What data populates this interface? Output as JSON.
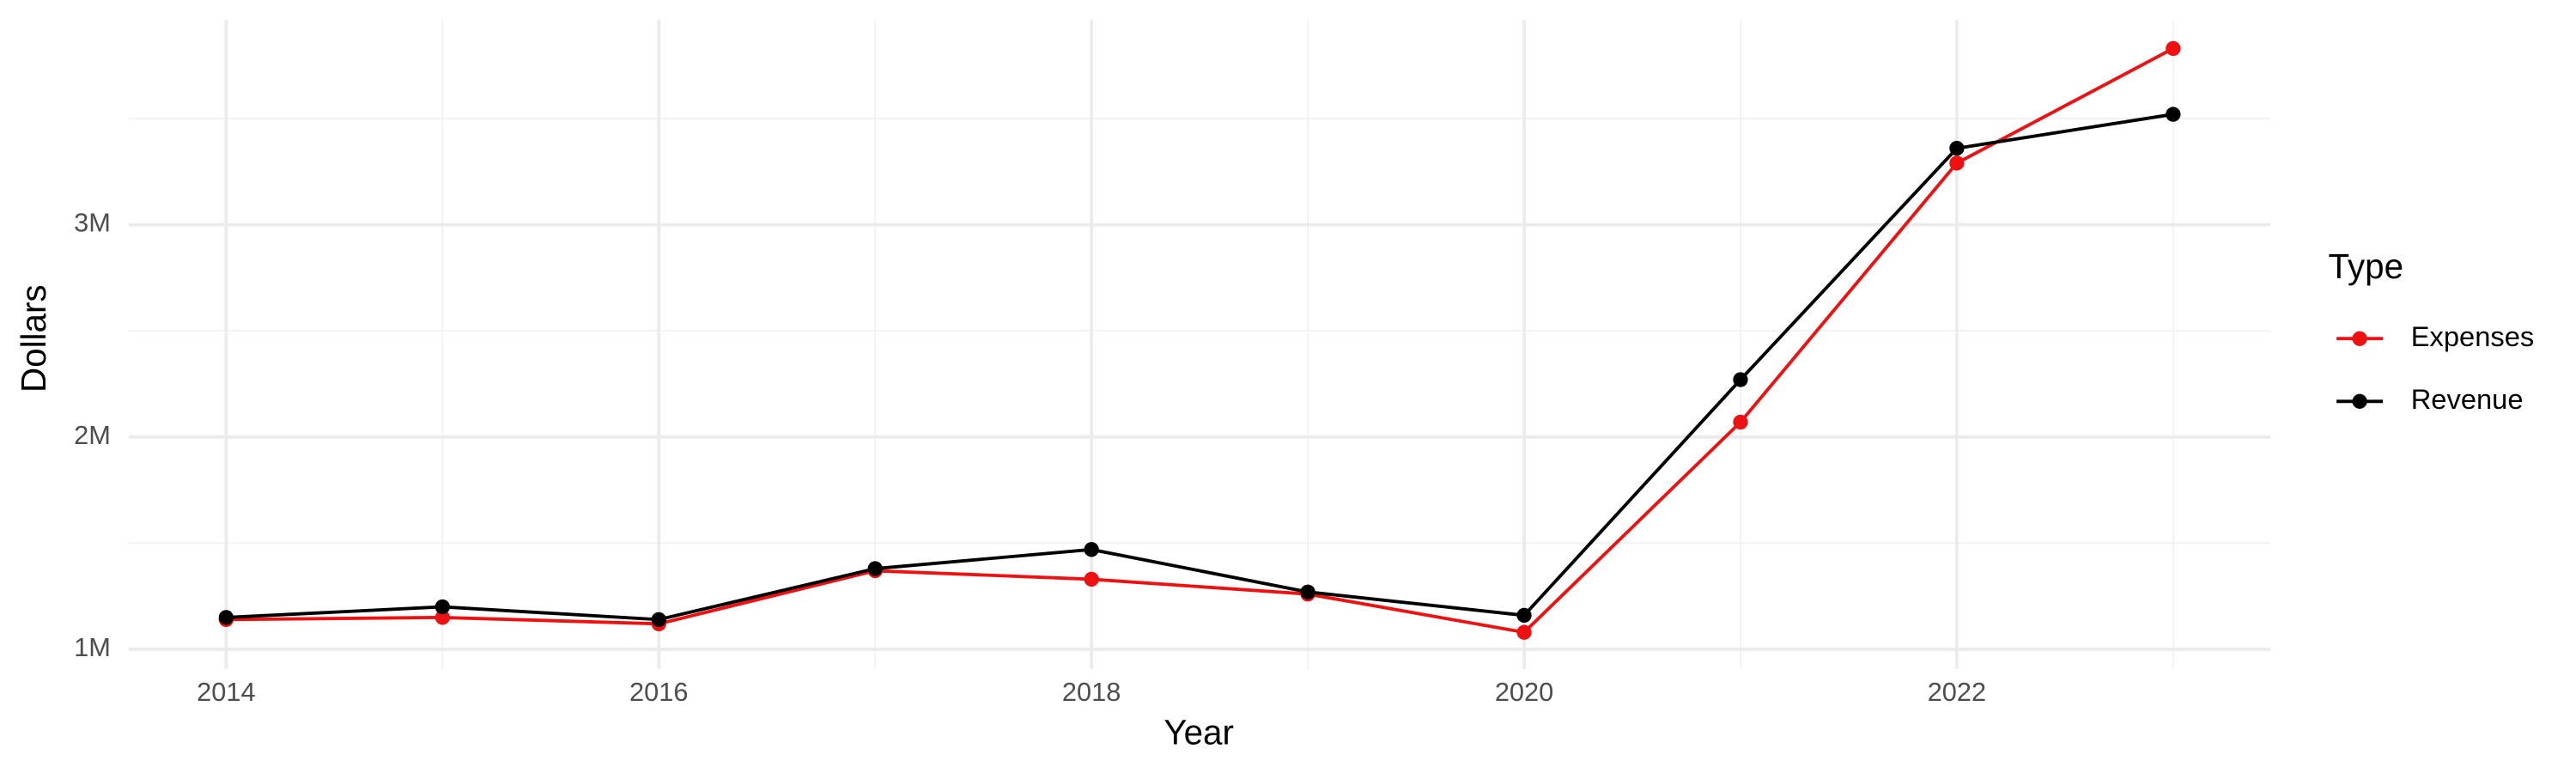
{
  "chart_data": {
    "type": "line",
    "x_label": "Year",
    "y_label": "Dollars",
    "legend_title": "Type",
    "legend_position": "right",
    "x": [
      2014,
      2015,
      2016,
      2017,
      2018,
      2019,
      2020,
      2021,
      2022,
      2023
    ],
    "series": [
      {
        "name": "Expenses",
        "color": "#ee1111",
        "values": [
          1140000,
          1150000,
          1120000,
          1370000,
          1330000,
          1260000,
          1080000,
          2070000,
          3290000,
          3830000
        ]
      },
      {
        "name": "Revenue",
        "color": "#000000",
        "values": [
          1150000,
          1200000,
          1140000,
          1380000,
          1470000,
          1270000,
          1160000,
          2270000,
          3360000,
          3520000
        ]
      }
    ],
    "xlim": [
      2013.55,
      2023.45
    ],
    "xticks": [
      2014,
      2016,
      2018,
      2020,
      2022
    ],
    "xminor": [
      2015,
      2017,
      2019,
      2021,
      2023
    ],
    "ylim": [
      907500,
      3965000
    ],
    "yticks": [
      {
        "value": 1000000,
        "label": "1M"
      },
      {
        "value": 2000000,
        "label": "2M"
      },
      {
        "value": 3000000,
        "label": "3M"
      }
    ],
    "yminor": [
      1500000,
      2500000,
      3500000
    ],
    "grid": true
  }
}
